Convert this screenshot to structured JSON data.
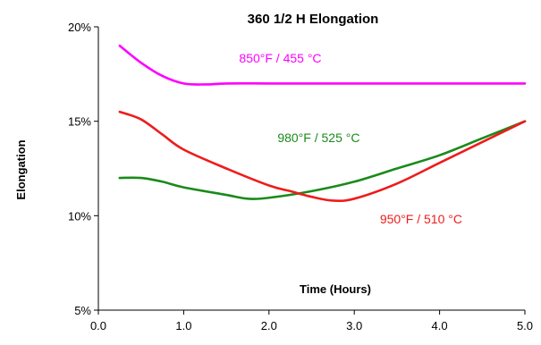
{
  "chart_data": {
    "type": "line",
    "title": "360 1/2 H Elongation",
    "xlabel": "Time (Hours)",
    "ylabel": "Elongation",
    "xlim": [
      0,
      5
    ],
    "ylim": [
      5,
      20
    ],
    "x_ticks": [
      0,
      1,
      2,
      3,
      4,
      5
    ],
    "x_tick_labels": [
      "0.0",
      "1.0",
      "2.0",
      "3.0",
      "4.0",
      "5.0"
    ],
    "y_ticks": [
      5,
      10,
      15,
      20
    ],
    "y_tick_labels": [
      "5%",
      "10%",
      "15%",
      "20%"
    ],
    "grid": false,
    "legend": "none",
    "series": [
      {
        "name": "850°F / 455 °C",
        "color": "#ff00ff",
        "x": [
          0.25,
          0.5,
          0.75,
          1.0,
          1.25,
          1.5,
          2.0,
          2.5,
          3.0,
          3.5,
          4.0,
          4.5,
          5.0
        ],
        "y": [
          19.0,
          18.1,
          17.4,
          17.0,
          16.95,
          17.0,
          17.0,
          17.0,
          17.0,
          17.0,
          17.0,
          17.0,
          17.0
        ]
      },
      {
        "name": "980°F / 525 °C",
        "color": "#1a8a1a",
        "x": [
          0.25,
          0.5,
          0.75,
          1.0,
          1.5,
          1.75,
          2.0,
          2.5,
          3.0,
          3.5,
          4.0,
          4.5,
          5.0
        ],
        "y": [
          12.0,
          12.0,
          11.8,
          11.5,
          11.1,
          10.9,
          10.95,
          11.3,
          11.8,
          12.5,
          13.2,
          14.1,
          15.0
        ]
      },
      {
        "name": "950°F / 510 °C",
        "color": "#ee1c1c",
        "x": [
          0.25,
          0.5,
          0.75,
          1.0,
          1.5,
          2.0,
          2.25,
          2.5,
          2.75,
          3.0,
          3.5,
          4.0,
          4.5,
          5.0
        ],
        "y": [
          15.5,
          15.1,
          14.3,
          13.5,
          12.5,
          11.6,
          11.3,
          11.0,
          10.8,
          10.9,
          11.7,
          12.8,
          13.9,
          15.0
        ]
      }
    ],
    "annotations": [
      {
        "text": "850°F / 455 °C",
        "x": 1.65,
        "y": 18.1,
        "color": "#ff00ff"
      },
      {
        "text": "980°F / 525 °C",
        "x": 2.1,
        "y": 13.9,
        "color": "#1a8a1a"
      },
      {
        "text": "950°F / 510 °C",
        "x": 3.3,
        "y": 9.6,
        "color": "#ee1c1c"
      }
    ]
  }
}
